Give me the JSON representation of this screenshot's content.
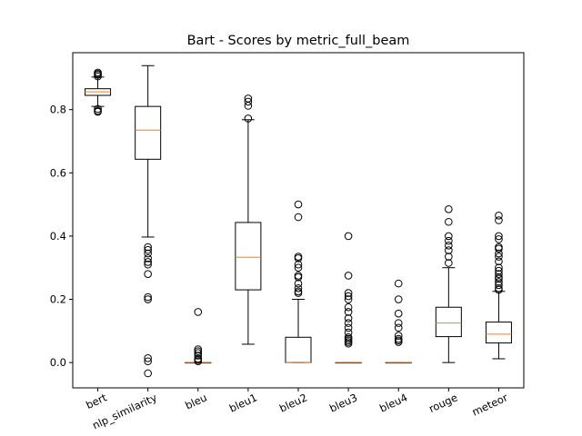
{
  "chart_data": {
    "type": "box",
    "title": "Bart - Scores by metric_full_beam",
    "xlabel": "",
    "ylabel": "",
    "ylim": [
      -0.08,
      0.98
    ],
    "yticks": [
      0.0,
      0.2,
      0.4,
      0.6,
      0.8
    ],
    "ytick_labels": [
      "0.0",
      "0.2",
      "0.4",
      "0.6",
      "0.8"
    ],
    "grid": false,
    "categories": [
      "bert",
      "nlp_similarity",
      "bleu",
      "bleu1",
      "bleu2",
      "bleu3",
      "bleu4",
      "rouge",
      "meteor"
    ],
    "boxes": [
      {
        "name": "bert",
        "whislo": 0.81,
        "q1": 0.845,
        "med": 0.856,
        "q3": 0.866,
        "whishi": 0.903,
        "fliers": [
          0.913,
          0.917,
          0.91,
          0.905,
          0.802,
          0.796,
          0.793
        ]
      },
      {
        "name": "nlp_similarity",
        "whislo": 0.397,
        "q1": 0.643,
        "med": 0.735,
        "q3": 0.81,
        "whishi": 0.939,
        "fliers": [
          0.365,
          0.356,
          0.345,
          0.33,
          0.318,
          0.31,
          0.28,
          0.207,
          0.2,
          0.014,
          0.004,
          -0.034
        ]
      },
      {
        "name": "bleu",
        "whislo": 0.0,
        "q1": 0.0,
        "med": 0.0,
        "q3": 0.0,
        "whishi": 0.0,
        "fliers": [
          0.16,
          0.042,
          0.036,
          0.03,
          0.022,
          0.012,
          0.008,
          0.004
        ]
      },
      {
        "name": "bleu1",
        "whislo": 0.058,
        "q1": 0.23,
        "med": 0.333,
        "q3": 0.443,
        "whishi": 0.768,
        "fliers": [
          0.835,
          0.825,
          0.812,
          0.772
        ]
      },
      {
        "name": "bleu2",
        "whislo": 0.0,
        "q1": 0.0,
        "med": 0.0,
        "q3": 0.08,
        "whishi": 0.2,
        "fliers": [
          0.5,
          0.46,
          0.335,
          0.33,
          0.31,
          0.3,
          0.275,
          0.27,
          0.25,
          0.235,
          0.225,
          0.22
        ]
      },
      {
        "name": "bleu3",
        "whislo": 0.0,
        "q1": 0.0,
        "med": 0.0,
        "q3": 0.0,
        "whishi": 0.0,
        "fliers": [
          0.4,
          0.275,
          0.22,
          0.21,
          0.2,
          0.175,
          0.16,
          0.14,
          0.125,
          0.11,
          0.095,
          0.08,
          0.075,
          0.07,
          0.065,
          0.06
        ]
      },
      {
        "name": "bleu4",
        "whislo": 0.0,
        "q1": 0.0,
        "med": 0.0,
        "q3": 0.0,
        "whishi": 0.0,
        "fliers": [
          0.25,
          0.2,
          0.155,
          0.125,
          0.11,
          0.085,
          0.075,
          0.07,
          0.065
        ]
      },
      {
        "name": "rouge",
        "whislo": 0.0,
        "q1": 0.082,
        "med": 0.125,
        "q3": 0.175,
        "whishi": 0.3,
        "fliers": [
          0.485,
          0.445,
          0.4,
          0.385,
          0.37,
          0.355,
          0.335,
          0.315
        ]
      },
      {
        "name": "meteor",
        "whislo": 0.012,
        "q1": 0.062,
        "med": 0.09,
        "q3": 0.128,
        "whishi": 0.225,
        "fliers": [
          0.465,
          0.45,
          0.4,
          0.39,
          0.365,
          0.36,
          0.345,
          0.335,
          0.32,
          0.3,
          0.29,
          0.28,
          0.27,
          0.265,
          0.255,
          0.245,
          0.235,
          0.23
        ]
      }
    ]
  }
}
